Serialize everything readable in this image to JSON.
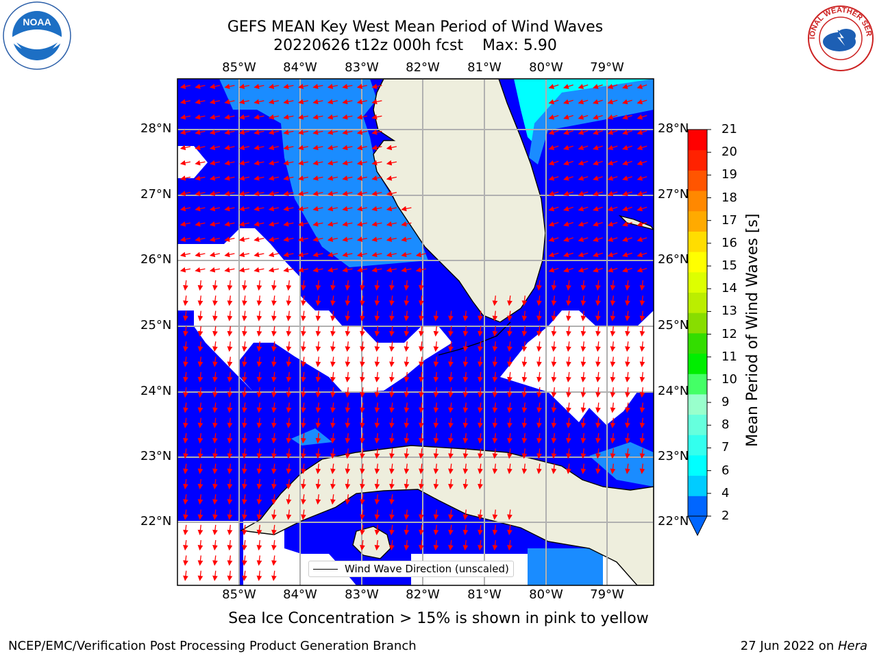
{
  "header": {
    "title": "GEFS MEAN Key West Mean Period of Wind Waves",
    "subtitle": "20220626 t12z 000h fcst    Max: 5.90"
  },
  "logos": {
    "left": "NOAA",
    "right": "NATIONAL WEATHER SERVICE"
  },
  "map": {
    "lon_ticks": [
      "85°W",
      "84°W",
      "83°W",
      "82°W",
      "81°W",
      "80°W",
      "79°W"
    ],
    "lat_ticks": [
      "28°N",
      "27°N",
      "26°N",
      "25°N",
      "24°N",
      "23°N",
      "22°N"
    ],
    "legend_label": "Wind Wave Direction (unscaled)",
    "caption": "Sea Ice Concentration > 15% is shown in pink to yellow",
    "land_color": "#eeeedd",
    "arrow_color": "#ff0000"
  },
  "colorbar": {
    "title": "Mean Period of Wind Waves [s]",
    "ticks": [
      "2",
      "4",
      "6",
      "7",
      "8",
      "9",
      "10",
      "11",
      "12",
      "13",
      "14",
      "15",
      "16",
      "17",
      "18",
      "19",
      "20",
      "21"
    ],
    "colors": [
      "#0066ff",
      "#00ccff",
      "#00ffff",
      "#33ffee",
      "#66ffdd",
      "#99ffcc",
      "#44ff66",
      "#00ee00",
      "#33dd00",
      "#88dd00",
      "#bbee00",
      "#ddff00",
      "#ffff00",
      "#ffdd00",
      "#ffaa00",
      "#ff8800",
      "#ff5500",
      "#ff2200",
      "#ff0000"
    ]
  },
  "footer": {
    "left": "NCEP/EMC/Verification Post Processing Product Generation Branch",
    "right_prefix": "27 Jun 2022 on ",
    "right_host": "Hera"
  }
}
